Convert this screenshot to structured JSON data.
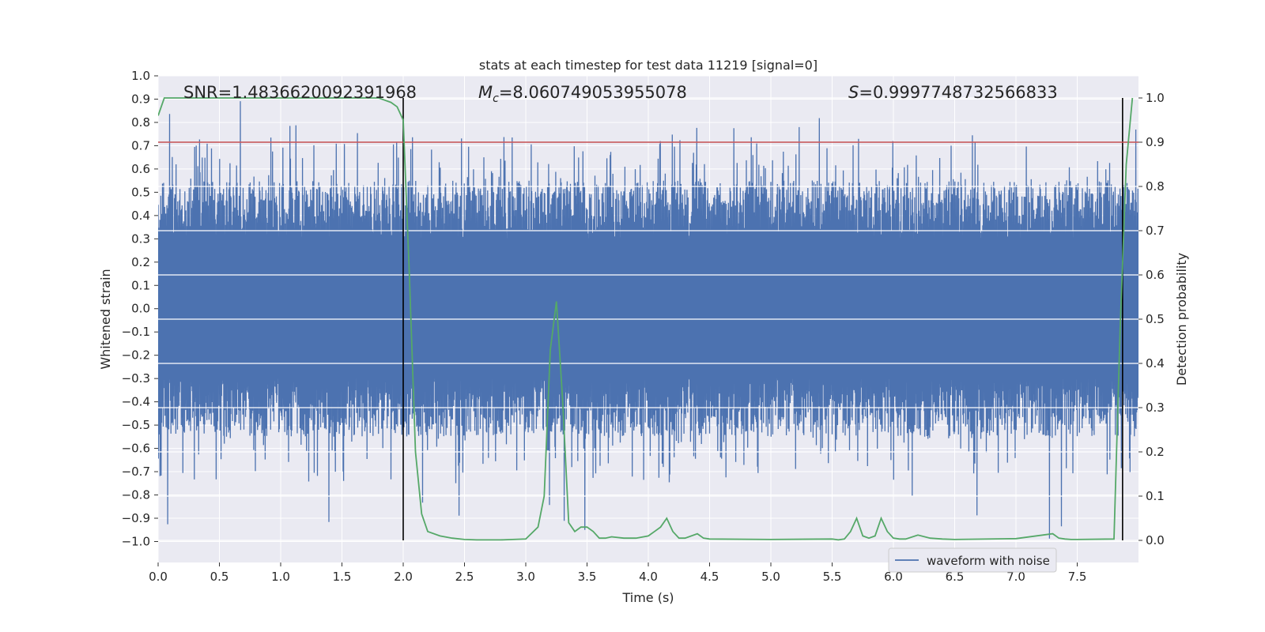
{
  "chart_data": {
    "type": "line",
    "title": "stats at each timestep for test data 11219 [signal=0]",
    "xlabel": "Time (s)",
    "ylabel_left": "Whitened strain",
    "ylabel_right": "Detection probability",
    "xlim": [
      0.0,
      8.0
    ],
    "ylim_left": [
      -1.09,
      1.0
    ],
    "ylim_right": [
      -0.05,
      1.05
    ],
    "x_ticks": [
      "0.0",
      "0.5",
      "1.0",
      "1.5",
      "2.0",
      "2.5",
      "3.0",
      "3.5",
      "4.0",
      "4.5",
      "5.0",
      "5.5",
      "6.0",
      "6.5",
      "7.0",
      "7.5"
    ],
    "y_left_ticks": [
      "1.0",
      "0.9",
      "0.8",
      "0.7",
      "0.6",
      "0.5",
      "0.4",
      "0.3",
      "0.2",
      "0.1",
      "0.0",
      "−0.1",
      "−0.2",
      "−0.3",
      "−0.4",
      "−0.5",
      "−0.6",
      "−0.7",
      "−0.8",
      "−0.9",
      "−1.0"
    ],
    "y_right_ticks": [
      "1.0",
      "0.9",
      "0.8",
      "0.7",
      "0.6",
      "0.5",
      "0.4",
      "0.3",
      "0.2",
      "0.1",
      "0.0"
    ],
    "annotations": {
      "snr": "SNR=1.4836620092391968",
      "mc_symbol": "M",
      "mc_sub": "c",
      "mc_value": "=8.060749053955078",
      "s_symbol": "S",
      "s_value": "=0.9997748732566833"
    },
    "legend": {
      "label": "waveform with noise",
      "location": "lower right"
    },
    "threshold_probability": 0.9,
    "vertical_lines_s": [
      2.0,
      7.87
    ],
    "colors": {
      "waveform": "#4c72b0",
      "probability": "#55a868",
      "threshold": "#c44e52",
      "vlines": "#000000",
      "axes_bg": "#eaeaf2",
      "grid": "#ffffff"
    },
    "waveform": {
      "duration_s": 8.0,
      "core_envelope": 0.3,
      "typical_peak": 0.55,
      "max_strain": 0.9,
      "min_strain": -1.0
    },
    "detection_probability": {
      "t": [
        0.0,
        0.05,
        0.1,
        0.2,
        0.4,
        0.6,
        0.8,
        1.0,
        1.2,
        1.4,
        1.6,
        1.8,
        1.9,
        1.95,
        2.0,
        2.05,
        2.1,
        2.15,
        2.2,
        2.3,
        2.4,
        2.5,
        2.6,
        2.8,
        3.0,
        3.1,
        3.15,
        3.2,
        3.25,
        3.3,
        3.35,
        3.4,
        3.45,
        3.5,
        3.55,
        3.6,
        3.65,
        3.7,
        3.8,
        3.9,
        4.0,
        4.05,
        4.1,
        4.15,
        4.2,
        4.25,
        4.3,
        4.4,
        4.45,
        4.5,
        5.0,
        5.5,
        5.55,
        5.6,
        5.65,
        5.7,
        5.75,
        5.8,
        5.85,
        5.9,
        5.95,
        6.0,
        6.05,
        6.1,
        6.2,
        6.3,
        6.4,
        6.5,
        7.0,
        7.3,
        7.35,
        7.4,
        7.45,
        7.5,
        7.8,
        7.85,
        7.9,
        7.95
      ],
      "p": [
        0.96,
        1.0,
        1.0,
        1.0,
        1.0,
        1.0,
        1.0,
        1.0,
        1.0,
        1.0,
        1.0,
        1.0,
        0.99,
        0.98,
        0.95,
        0.6,
        0.2,
        0.06,
        0.02,
        0.01,
        0.005,
        0.002,
        0.001,
        0.001,
        0.003,
        0.03,
        0.1,
        0.43,
        0.54,
        0.32,
        0.04,
        0.02,
        0.03,
        0.03,
        0.02,
        0.005,
        0.005,
        0.008,
        0.005,
        0.005,
        0.01,
        0.02,
        0.03,
        0.05,
        0.02,
        0.005,
        0.005,
        0.015,
        0.005,
        0.003,
        0.002,
        0.003,
        0.001,
        0.003,
        0.02,
        0.05,
        0.01,
        0.005,
        0.01,
        0.05,
        0.02,
        0.005,
        0.003,
        0.003,
        0.012,
        0.005,
        0.003,
        0.002,
        0.004,
        0.015,
        0.005,
        0.003,
        0.002,
        0.002,
        0.003,
        0.48,
        0.85,
        1.0
      ]
    }
  }
}
